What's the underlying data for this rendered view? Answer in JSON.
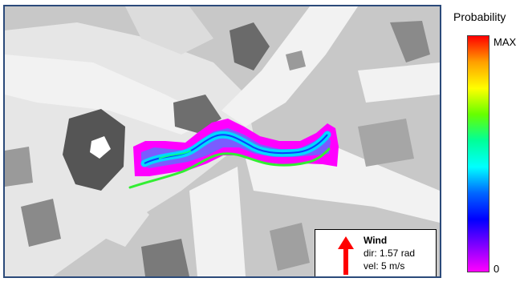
{
  "map": {
    "background_color": "#c8c8c8",
    "road_color": "#f2f2f2",
    "building_color": "#555555"
  },
  "plume": {
    "edge_color": "#ff00ff",
    "core_color": "#00d8ff",
    "ridge_color": "#0a3cff",
    "trajectory_color": "#33ee33"
  },
  "wind": {
    "title": "Wind",
    "direction": "dir: 1.57 rad",
    "velocity": "vel: 5 m/s",
    "arrow_color": "#ff0000"
  },
  "colorbar": {
    "title": "Probability",
    "max_label": "MAX",
    "min_label": "0",
    "colors": [
      "#ff0000",
      "#ffa000",
      "#ffff00",
      "#66ff00",
      "#00ff99",
      "#00ffff",
      "#0066ff",
      "#0000ff",
      "#8000ff",
      "#ff00ff"
    ]
  }
}
